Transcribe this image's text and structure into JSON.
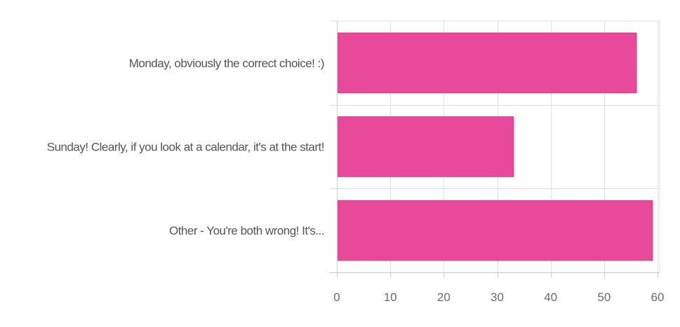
{
  "chart_data": {
    "type": "bar",
    "orientation": "horizontal",
    "categories": [
      "Monday, obviously the correct choice! :)",
      "Sunday! Clearly, if you look at a calendar, it's at the start!",
      "Other - You're both wrong! It's..."
    ],
    "values": [
      56,
      33,
      59
    ],
    "xlim": [
      0,
      60
    ],
    "xticks": [
      "0",
      "10",
      "20",
      "30",
      "40",
      "50",
      "60"
    ],
    "grid": true,
    "legend": "none",
    "bar_color": "#e8499a",
    "bar_border_color": "#d93a8a",
    "grid_color": "#e2e2e2",
    "axis_color": "#cccccc",
    "label_color": "#555555"
  }
}
